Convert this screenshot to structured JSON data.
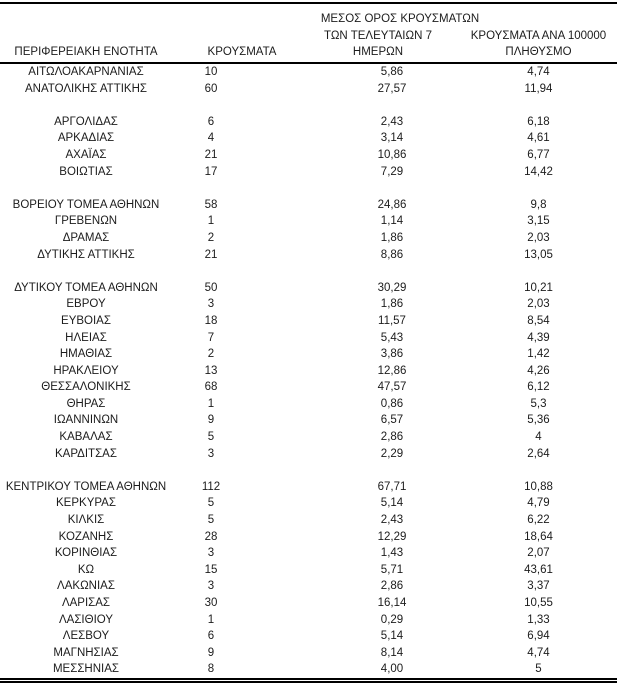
{
  "table": {
    "title_semantic": "cases-by-regional-unit",
    "columns": [
      {
        "id": "region",
        "label": "ΠΕΡΙΦΕΡΕΙΑΚΗ ΕΝΟΤΗΤΑ"
      },
      {
        "id": "cases",
        "label": "ΚΡΟΥΣΜΑΤΑ"
      },
      {
        "id": "avg7",
        "label": "ΜΕΣΟΣ ΟΡΟΣ ΚΡΟΥΣΜΑΤΩΝ ΤΩΝ ΤΕΛΕΥΤΑΙΩΝ 7 ΗΜΕΡΩΝ",
        "lines": [
          "ΜΕΣΟΣ ΟΡΟΣ ΚΡΟΥΣΜΑΤΩΝ",
          "ΤΩΝ ΤΕΛΕΥΤΑΙΩΝ 7",
          "ΗΜΕΡΩΝ"
        ]
      },
      {
        "id": "per100k",
        "label": "ΚΡΟΥΣΜΑΤΑ ΑΝΑ 100000 ΠΛΗΘΥΣΜΟ",
        "lines": [
          "ΚΡΟΥΣΜΑΤΑ ΑΝΑ 100000",
          "ΠΛΗΘΥΣΜΟ"
        ]
      }
    ],
    "rows": [
      {
        "region": "ΑΙΤΩΛΟΑΚΑΡΝΑΝΙΑΣ",
        "cases": "10",
        "avg7": "5,86",
        "per100k": "4,74"
      },
      {
        "region": "ΑΝΑΤΟΛΙΚΗΣ ΑΤΤΙΚΗΣ",
        "cases": "60",
        "avg7": "27,57",
        "per100k": "11,94"
      },
      {
        "separator": true
      },
      {
        "region": "ΑΡΓΟΛΙΔΑΣ",
        "cases": "6",
        "avg7": "2,43",
        "per100k": "6,18"
      },
      {
        "region": "ΑΡΚΑΔΙΑΣ",
        "cases": "4",
        "avg7": "3,14",
        "per100k": "4,61"
      },
      {
        "region": "ΑΧΑΪΑΣ",
        "cases": "21",
        "avg7": "10,86",
        "per100k": "6,77"
      },
      {
        "region": "ΒΟΙΩΤΙΑΣ",
        "cases": "17",
        "avg7": "7,29",
        "per100k": "14,42"
      },
      {
        "separator": true
      },
      {
        "region": "ΒΟΡΕΙΟΥ ΤΟΜΕΑ ΑΘΗΝΩΝ",
        "cases": "58",
        "avg7": "24,86",
        "per100k": "9,8"
      },
      {
        "region": "ΓΡΕΒΕΝΩΝ",
        "cases": "1",
        "avg7": "1,14",
        "per100k": "3,15"
      },
      {
        "region": "ΔΡΑΜΑΣ",
        "cases": "2",
        "avg7": "1,86",
        "per100k": "2,03"
      },
      {
        "region": "ΔΥΤΙΚΗΣ ΑΤΤΙΚΗΣ",
        "cases": "21",
        "avg7": "8,86",
        "per100k": "13,05"
      },
      {
        "separator": true
      },
      {
        "region": "ΔΥΤΙΚΟΥ ΤΟΜΕΑ ΑΘΗΝΩΝ",
        "cases": "50",
        "avg7": "30,29",
        "per100k": "10,21"
      },
      {
        "region": "ΕΒΡΟΥ",
        "cases": "3",
        "avg7": "1,86",
        "per100k": "2,03"
      },
      {
        "region": "ΕΥΒΟΙΑΣ",
        "cases": "18",
        "avg7": "11,57",
        "per100k": "8,54"
      },
      {
        "region": "ΗΛΕΙΑΣ",
        "cases": "7",
        "avg7": "5,43",
        "per100k": "4,39"
      },
      {
        "region": "ΗΜΑΘΙΑΣ",
        "cases": "2",
        "avg7": "3,86",
        "per100k": "1,42"
      },
      {
        "region": "ΗΡΑΚΛΕΙΟΥ",
        "cases": "13",
        "avg7": "12,86",
        "per100k": "4,26"
      },
      {
        "region": "ΘΕΣΣΑΛΟΝΙΚΗΣ",
        "cases": "68",
        "avg7": "47,57",
        "per100k": "6,12"
      },
      {
        "region": "ΘΗΡΑΣ",
        "cases": "1",
        "avg7": "0,86",
        "per100k": "5,3"
      },
      {
        "region": "ΙΩΑΝΝΙΝΩΝ",
        "cases": "9",
        "avg7": "6,57",
        "per100k": "5,36"
      },
      {
        "region": "ΚΑΒΑΛΑΣ",
        "cases": "5",
        "avg7": "2,86",
        "per100k": "4"
      },
      {
        "region": "ΚΑΡΔΙΤΣΑΣ",
        "cases": "3",
        "avg7": "2,29",
        "per100k": "2,64"
      },
      {
        "separator": true
      },
      {
        "region": "ΚΕΝΤΡΙΚΟΥ ΤΟΜΕΑ ΑΘΗΝΩΝ",
        "cases": "112",
        "avg7": "67,71",
        "per100k": "10,88"
      },
      {
        "region": "ΚΕΡΚΥΡΑΣ",
        "cases": "5",
        "avg7": "5,14",
        "per100k": "4,79"
      },
      {
        "region": "ΚΙΛΚΙΣ",
        "cases": "5",
        "avg7": "2,43",
        "per100k": "6,22"
      },
      {
        "region": "ΚΟΖΑΝΗΣ",
        "cases": "28",
        "avg7": "12,29",
        "per100k": "18,64"
      },
      {
        "region": "ΚΟΡΙΝΘΙΑΣ",
        "cases": "3",
        "avg7": "1,43",
        "per100k": "2,07"
      },
      {
        "region": "ΚΩ",
        "cases": "15",
        "avg7": "5,71",
        "per100k": "43,61"
      },
      {
        "region": "ΛΑΚΩΝΙΑΣ",
        "cases": "3",
        "avg7": "2,86",
        "per100k": "3,37"
      },
      {
        "region": "ΛΑΡΙΣΑΣ",
        "cases": "30",
        "avg7": "16,14",
        "per100k": "10,55"
      },
      {
        "region": "ΛΑΣΙΘΙΟΥ",
        "cases": "1",
        "avg7": "0,29",
        "per100k": "1,33"
      },
      {
        "region": "ΛΕΣΒΟΥ",
        "cases": "6",
        "avg7": "5,14",
        "per100k": "6,94"
      },
      {
        "region": "ΜΑΓΝΗΣΙΑΣ",
        "cases": "9",
        "avg7": "8,14",
        "per100k": "4,74"
      },
      {
        "region": "ΜΕΣΣΗΝΙΑΣ",
        "cases": "8",
        "avg7": "4,00",
        "per100k": "5"
      }
    ]
  }
}
